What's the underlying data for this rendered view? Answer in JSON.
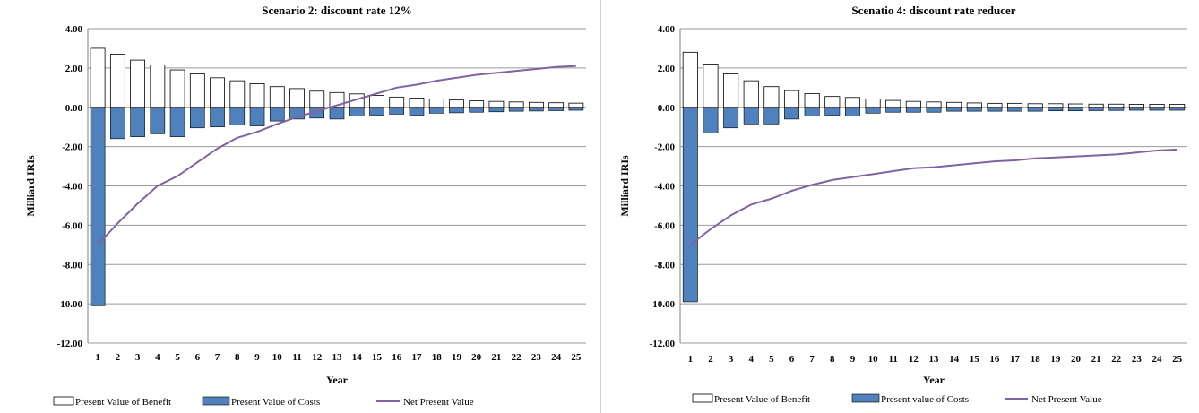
{
  "charts": [
    {
      "title": "Scenario 2: discount rate 12%",
      "ylabel": "Milliard IRIs",
      "xlabel": "Year",
      "legend": {
        "benefit": "Present Value of Benefit",
        "costs": "Present Value of Costs",
        "npv": "Net Present Value"
      }
    },
    {
      "title": "Scenatio 4: discount rate reducer",
      "ylabel": "Milliard IRIs",
      "xlabel": "Year",
      "legend": {
        "benefit": "Present Value of Benefit",
        "costs": "Present value of Costs",
        "npv": "Net Present Value"
      }
    }
  ],
  "colors": {
    "costs": "#4f81bd",
    "benefit": "#ffffff",
    "npv": "#8064a2",
    "grid": "#9a9a9a"
  },
  "chart_data": [
    {
      "type": "bar",
      "title": "Scenario 2: discount rate 12%",
      "xlabel": "Year",
      "ylabel": "Milliard IRIs",
      "ylim": [
        -12,
        4
      ],
      "yticks": [
        "4.00",
        "2.00",
        "0.00",
        "-2.00",
        "-4.00",
        "-6.00",
        "-8.00",
        "-10.00",
        "-12.00"
      ],
      "categories": [
        "1",
        "2",
        "3",
        "4",
        "5",
        "6",
        "7",
        "8",
        "9",
        "10",
        "11",
        "12",
        "13",
        "14",
        "15",
        "16",
        "17",
        "18",
        "19",
        "20",
        "21",
        "22",
        "23",
        "24",
        "25"
      ],
      "legend_position": "bottom",
      "grid": true,
      "series": [
        {
          "name": "Present Value of Benefit",
          "type": "bar",
          "values": [
            3.0,
            2.7,
            2.4,
            2.15,
            1.9,
            1.7,
            1.5,
            1.35,
            1.2,
            1.05,
            0.95,
            0.82,
            0.75,
            0.68,
            0.6,
            0.52,
            0.47,
            0.42,
            0.37,
            0.33,
            0.3,
            0.27,
            0.25,
            0.23,
            0.21
          ]
        },
        {
          "name": "Present Value of Costs",
          "type": "bar",
          "values": [
            -10.1,
            -1.6,
            -1.5,
            -1.35,
            -1.5,
            -1.05,
            -1.0,
            -0.9,
            -0.95,
            -0.7,
            -0.6,
            -0.55,
            -0.6,
            -0.45,
            -0.4,
            -0.35,
            -0.4,
            -0.3,
            -0.28,
            -0.25,
            -0.23,
            -0.2,
            -0.19,
            -0.17,
            -0.15
          ]
        },
        {
          "name": "Net Present Value",
          "type": "line",
          "values": [
            -7.0,
            -5.9,
            -4.9,
            -4.0,
            -3.5,
            -2.8,
            -2.1,
            -1.55,
            -1.25,
            -0.85,
            -0.5,
            -0.2,
            0.1,
            0.4,
            0.7,
            1.0,
            1.15,
            1.35,
            1.5,
            1.65,
            1.75,
            1.85,
            1.95,
            2.05,
            2.1
          ]
        }
      ]
    },
    {
      "type": "bar",
      "title": "Scenatio 4: discount rate reducer",
      "xlabel": "Year",
      "ylabel": "Milliard IRIs",
      "ylim": [
        -12,
        4
      ],
      "yticks": [
        "4.00",
        "2.00",
        "0.00",
        "-2.00",
        "-4.00",
        "-6.00",
        "-8.00",
        "-10.00",
        "-12.00"
      ],
      "categories": [
        "1",
        "2",
        "3",
        "4",
        "5",
        "6",
        "7",
        "8",
        "9",
        "10",
        "11",
        "12",
        "13",
        "14",
        "15",
        "16",
        "17",
        "18",
        "19",
        "20",
        "21",
        "22",
        "23",
        "24",
        "25"
      ],
      "legend_position": "bottom",
      "grid": true,
      "series": [
        {
          "name": "Present Value of Benefit",
          "type": "bar",
          "values": [
            2.8,
            2.2,
            1.7,
            1.35,
            1.05,
            0.85,
            0.7,
            0.55,
            0.5,
            0.42,
            0.35,
            0.3,
            0.27,
            0.25,
            0.22,
            0.2,
            0.2,
            0.18,
            0.18,
            0.17,
            0.16,
            0.16,
            0.15,
            0.15,
            0.15
          ]
        },
        {
          "name": "Present value of Costs",
          "type": "bar",
          "values": [
            -9.9,
            -1.3,
            -1.05,
            -0.85,
            -0.85,
            -0.6,
            -0.45,
            -0.4,
            -0.45,
            -0.3,
            -0.25,
            -0.25,
            -0.25,
            -0.2,
            -0.2,
            -0.2,
            -0.2,
            -0.2,
            -0.18,
            -0.18,
            -0.17,
            -0.16,
            -0.15,
            -0.15,
            -0.15
          ]
        },
        {
          "name": "Net Present Value",
          "type": "line",
          "values": [
            -7.0,
            -6.2,
            -5.5,
            -4.95,
            -4.65,
            -4.25,
            -3.95,
            -3.7,
            -3.55,
            -3.4,
            -3.25,
            -3.1,
            -3.05,
            -2.95,
            -2.85,
            -2.75,
            -2.7,
            -2.6,
            -2.55,
            -2.5,
            -2.45,
            -2.4,
            -2.3,
            -2.2,
            -2.15
          ]
        }
      ]
    }
  ]
}
